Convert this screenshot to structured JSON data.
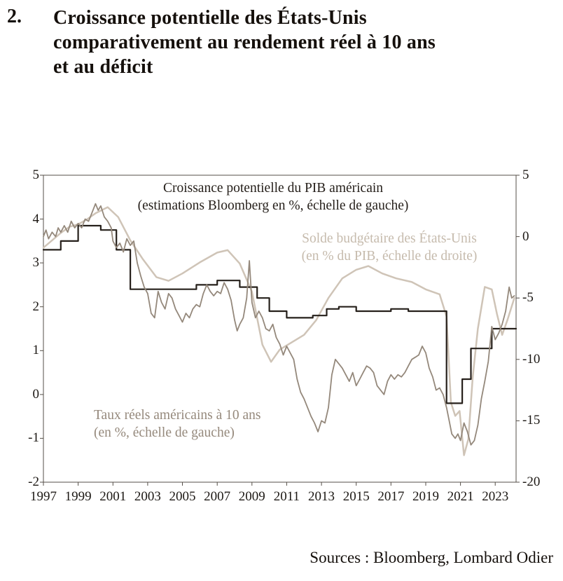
{
  "figure_number": "2.",
  "title": "Croissance potentielle des États-Unis comparativement au rendement réel à 10 ans et au déficit",
  "title_lines": [
    "Croissance potentielle des États-Unis",
    "comparativement au rendement réel à 10 ans",
    "et au déficit"
  ],
  "source": "Sources : Bloomberg, Lombard Odier",
  "chart_data": {
    "type": "line",
    "title": "Croissance potentielle des États-Unis comparativement au rendement réel à 10 ans et au déficit",
    "grid": false,
    "x_axis": {
      "min": 1997,
      "max": 2024.2,
      "ticks": [
        1997,
        1999,
        2001,
        2003,
        2005,
        2007,
        2009,
        2011,
        2013,
        2015,
        2017,
        2019,
        2021,
        2023
      ]
    },
    "left_axis": {
      "min": -2,
      "max": 5,
      "ticks": [
        5,
        4,
        3,
        2,
        1,
        0,
        -1,
        -2
      ]
    },
    "right_axis": {
      "min": -20,
      "max": 5,
      "ticks": [
        5,
        0,
        -5,
        -10,
        -15,
        -20
      ]
    },
    "annotations": {
      "gdp": {
        "line1": "Croissance potentielle du PIB américain",
        "line2": "(estimations Bloomberg en %, échelle de gauche)",
        "color": "#26201b"
      },
      "budget": {
        "line1": "Solde budgétaire des États-Unis",
        "line2": "(en % du PIB, échelle de droite)",
        "color": "#c6bbad"
      },
      "rates": {
        "line1": "Taux réels américains à 10 ans",
        "line2": "(en %, échelle de gauche)",
        "color": "#95897c"
      }
    },
    "series": [
      {
        "name": "solde-budgetaire-etats-unis",
        "axis": "right",
        "color": "#cfc4b7",
        "width": 2.5,
        "step": false,
        "points": [
          [
            1997,
            -0.9
          ],
          [
            1997.5,
            -0.3
          ],
          [
            1998,
            0.3
          ],
          [
            1998.5,
            0.8
          ],
          [
            1999,
            1.0
          ],
          [
            1999.5,
            1.4
          ],
          [
            2000,
            1.9
          ],
          [
            2000.7,
            2.4
          ],
          [
            2001.3,
            1.6
          ],
          [
            2002,
            -0.3
          ],
          [
            2002.7,
            -1.8
          ],
          [
            2003.5,
            -3.3
          ],
          [
            2004.2,
            -3.6
          ],
          [
            2005,
            -3.0
          ],
          [
            2006,
            -2.1
          ],
          [
            2007,
            -1.3
          ],
          [
            2007.6,
            -1.1
          ],
          [
            2008.3,
            -2.2
          ],
          [
            2009,
            -4.5
          ],
          [
            2009.6,
            -8.8
          ],
          [
            2010.1,
            -10.2
          ],
          [
            2010.6,
            -9.2
          ],
          [
            2011.3,
            -8.6
          ],
          [
            2012,
            -8.0
          ],
          [
            2012.7,
            -6.8
          ],
          [
            2013.4,
            -5.0
          ],
          [
            2014.2,
            -3.4
          ],
          [
            2015,
            -2.7
          ],
          [
            2015.7,
            -2.4
          ],
          [
            2016.5,
            -3.0
          ],
          [
            2017.3,
            -3.4
          ],
          [
            2018.2,
            -3.7
          ],
          [
            2019,
            -4.3
          ],
          [
            2019.8,
            -4.7
          ],
          [
            2020.2,
            -6.5
          ],
          [
            2020.45,
            -13.5
          ],
          [
            2020.7,
            -14.6
          ],
          [
            2020.95,
            -14.2
          ],
          [
            2021.2,
            -17.8
          ],
          [
            2021.45,
            -16.5
          ],
          [
            2021.7,
            -11.5
          ],
          [
            2022,
            -7.5
          ],
          [
            2022.4,
            -4.1
          ],
          [
            2022.8,
            -4.3
          ],
          [
            2023.1,
            -6.3
          ],
          [
            2023.4,
            -8.0
          ],
          [
            2023.7,
            -6.8
          ],
          [
            2024.1,
            -5.0
          ]
        ]
      },
      {
        "name": "croissance-potentielle-pib",
        "axis": "left",
        "color": "#26201b",
        "width": 2.2,
        "step": true,
        "points": [
          [
            1997,
            3.3
          ],
          [
            1998,
            3.5
          ],
          [
            1999,
            3.85
          ],
          [
            2000.3,
            3.75
          ],
          [
            2001.2,
            3.3
          ],
          [
            2002,
            2.4
          ],
          [
            2005.8,
            2.5
          ],
          [
            2007,
            2.6
          ],
          [
            2008.3,
            2.45
          ],
          [
            2009.3,
            2.2
          ],
          [
            2010,
            1.9
          ],
          [
            2011,
            1.75
          ],
          [
            2012.5,
            1.8
          ],
          [
            2013.3,
            1.95
          ],
          [
            2014,
            2.0
          ],
          [
            2015,
            1.9
          ],
          [
            2017,
            1.95
          ],
          [
            2018,
            1.9
          ],
          [
            2020.2,
            -0.2
          ],
          [
            2021.1,
            0.35
          ],
          [
            2021.6,
            1.05
          ],
          [
            2022.8,
            1.5
          ],
          [
            2024.2,
            1.5
          ]
        ]
      },
      {
        "name": "taux-reels-10-ans",
        "axis": "left",
        "color": "#94887b",
        "width": 1.8,
        "step": false,
        "points": [
          [
            1997.0,
            3.6
          ],
          [
            1997.15,
            3.75
          ],
          [
            1997.3,
            3.55
          ],
          [
            1997.5,
            3.7
          ],
          [
            1997.7,
            3.6
          ],
          [
            1997.85,
            3.8
          ],
          [
            1998.0,
            3.7
          ],
          [
            1998.2,
            3.85
          ],
          [
            1998.4,
            3.7
          ],
          [
            1998.6,
            3.95
          ],
          [
            1998.8,
            3.8
          ],
          [
            1999.0,
            3.9
          ],
          [
            1999.2,
            3.8
          ],
          [
            1999.4,
            4.0
          ],
          [
            1999.6,
            3.95
          ],
          [
            1999.8,
            4.15
          ],
          [
            2000.0,
            4.35
          ],
          [
            2000.15,
            4.2
          ],
          [
            2000.3,
            4.3
          ],
          [
            2000.5,
            4.05
          ],
          [
            2000.7,
            3.95
          ],
          [
            2000.9,
            3.8
          ],
          [
            2001.0,
            3.5
          ],
          [
            2001.2,
            3.35
          ],
          [
            2001.4,
            3.45
          ],
          [
            2001.6,
            3.25
          ],
          [
            2001.8,
            3.55
          ],
          [
            2002.0,
            3.4
          ],
          [
            2002.2,
            3.5
          ],
          [
            2002.4,
            3.0
          ],
          [
            2002.6,
            2.7
          ],
          [
            2002.8,
            2.45
          ],
          [
            2003.0,
            2.3
          ],
          [
            2003.2,
            1.85
          ],
          [
            2003.4,
            1.75
          ],
          [
            2003.6,
            2.35
          ],
          [
            2003.8,
            2.1
          ],
          [
            2004.0,
            1.95
          ],
          [
            2004.2,
            2.3
          ],
          [
            2004.4,
            2.2
          ],
          [
            2004.6,
            1.95
          ],
          [
            2004.8,
            1.8
          ],
          [
            2005.0,
            1.65
          ],
          [
            2005.2,
            1.85
          ],
          [
            2005.4,
            1.75
          ],
          [
            2005.6,
            1.95
          ],
          [
            2005.8,
            2.05
          ],
          [
            2006.0,
            2.0
          ],
          [
            2006.2,
            2.3
          ],
          [
            2006.4,
            2.5
          ],
          [
            2006.6,
            2.35
          ],
          [
            2006.8,
            2.25
          ],
          [
            2007.0,
            2.35
          ],
          [
            2007.2,
            2.3
          ],
          [
            2007.4,
            2.55
          ],
          [
            2007.6,
            2.4
          ],
          [
            2007.8,
            2.15
          ],
          [
            2008.0,
            1.7
          ],
          [
            2008.15,
            1.45
          ],
          [
            2008.3,
            1.6
          ],
          [
            2008.5,
            1.75
          ],
          [
            2008.7,
            2.2
          ],
          [
            2008.85,
            3.05
          ],
          [
            2008.95,
            2.4
          ],
          [
            2009.0,
            2.1
          ],
          [
            2009.2,
            1.75
          ],
          [
            2009.4,
            1.9
          ],
          [
            2009.6,
            1.75
          ],
          [
            2009.8,
            1.5
          ],
          [
            2010.0,
            1.45
          ],
          [
            2010.2,
            1.6
          ],
          [
            2010.4,
            1.3
          ],
          [
            2010.6,
            1.15
          ],
          [
            2010.8,
            0.9
          ],
          [
            2011.0,
            1.1
          ],
          [
            2011.2,
            0.95
          ],
          [
            2011.4,
            0.8
          ],
          [
            2011.6,
            0.35
          ],
          [
            2011.8,
            0.05
          ],
          [
            2012.0,
            -0.1
          ],
          [
            2012.2,
            -0.3
          ],
          [
            2012.4,
            -0.5
          ],
          [
            2012.6,
            -0.65
          ],
          [
            2012.8,
            -0.85
          ],
          [
            2013.0,
            -0.6
          ],
          [
            2013.2,
            -0.65
          ],
          [
            2013.4,
            -0.3
          ],
          [
            2013.6,
            0.45
          ],
          [
            2013.8,
            0.8
          ],
          [
            2014.0,
            0.7
          ],
          [
            2014.2,
            0.6
          ],
          [
            2014.4,
            0.45
          ],
          [
            2014.6,
            0.3
          ],
          [
            2014.8,
            0.5
          ],
          [
            2015.0,
            0.2
          ],
          [
            2015.2,
            0.35
          ],
          [
            2015.4,
            0.5
          ],
          [
            2015.6,
            0.65
          ],
          [
            2015.8,
            0.6
          ],
          [
            2016.0,
            0.5
          ],
          [
            2016.2,
            0.2
          ],
          [
            2016.4,
            0.1
          ],
          [
            2016.6,
            0.0
          ],
          [
            2016.8,
            0.3
          ],
          [
            2017.0,
            0.45
          ],
          [
            2017.2,
            0.35
          ],
          [
            2017.4,
            0.45
          ],
          [
            2017.6,
            0.4
          ],
          [
            2017.8,
            0.5
          ],
          [
            2018.0,
            0.65
          ],
          [
            2018.2,
            0.8
          ],
          [
            2018.4,
            0.85
          ],
          [
            2018.6,
            0.9
          ],
          [
            2018.8,
            1.1
          ],
          [
            2019.0,
            0.95
          ],
          [
            2019.2,
            0.6
          ],
          [
            2019.4,
            0.4
          ],
          [
            2019.6,
            0.1
          ],
          [
            2019.8,
            0.15
          ],
          [
            2020.0,
            0.0
          ],
          [
            2020.2,
            -0.3
          ],
          [
            2020.35,
            -0.6
          ],
          [
            2020.5,
            -0.9
          ],
          [
            2020.7,
            -1.0
          ],
          [
            2020.85,
            -0.9
          ],
          [
            2021.0,
            -1.05
          ],
          [
            2021.2,
            -0.65
          ],
          [
            2021.4,
            -0.85
          ],
          [
            2021.6,
            -1.15
          ],
          [
            2021.8,
            -1.05
          ],
          [
            2022.0,
            -0.7
          ],
          [
            2022.2,
            -0.1
          ],
          [
            2022.4,
            0.3
          ],
          [
            2022.6,
            0.75
          ],
          [
            2022.8,
            1.55
          ],
          [
            2023.0,
            1.25
          ],
          [
            2023.2,
            1.4
          ],
          [
            2023.4,
            1.6
          ],
          [
            2023.6,
            1.9
          ],
          [
            2023.8,
            2.45
          ],
          [
            2023.95,
            2.2
          ],
          [
            2024.1,
            2.25
          ]
        ]
      }
    ]
  }
}
